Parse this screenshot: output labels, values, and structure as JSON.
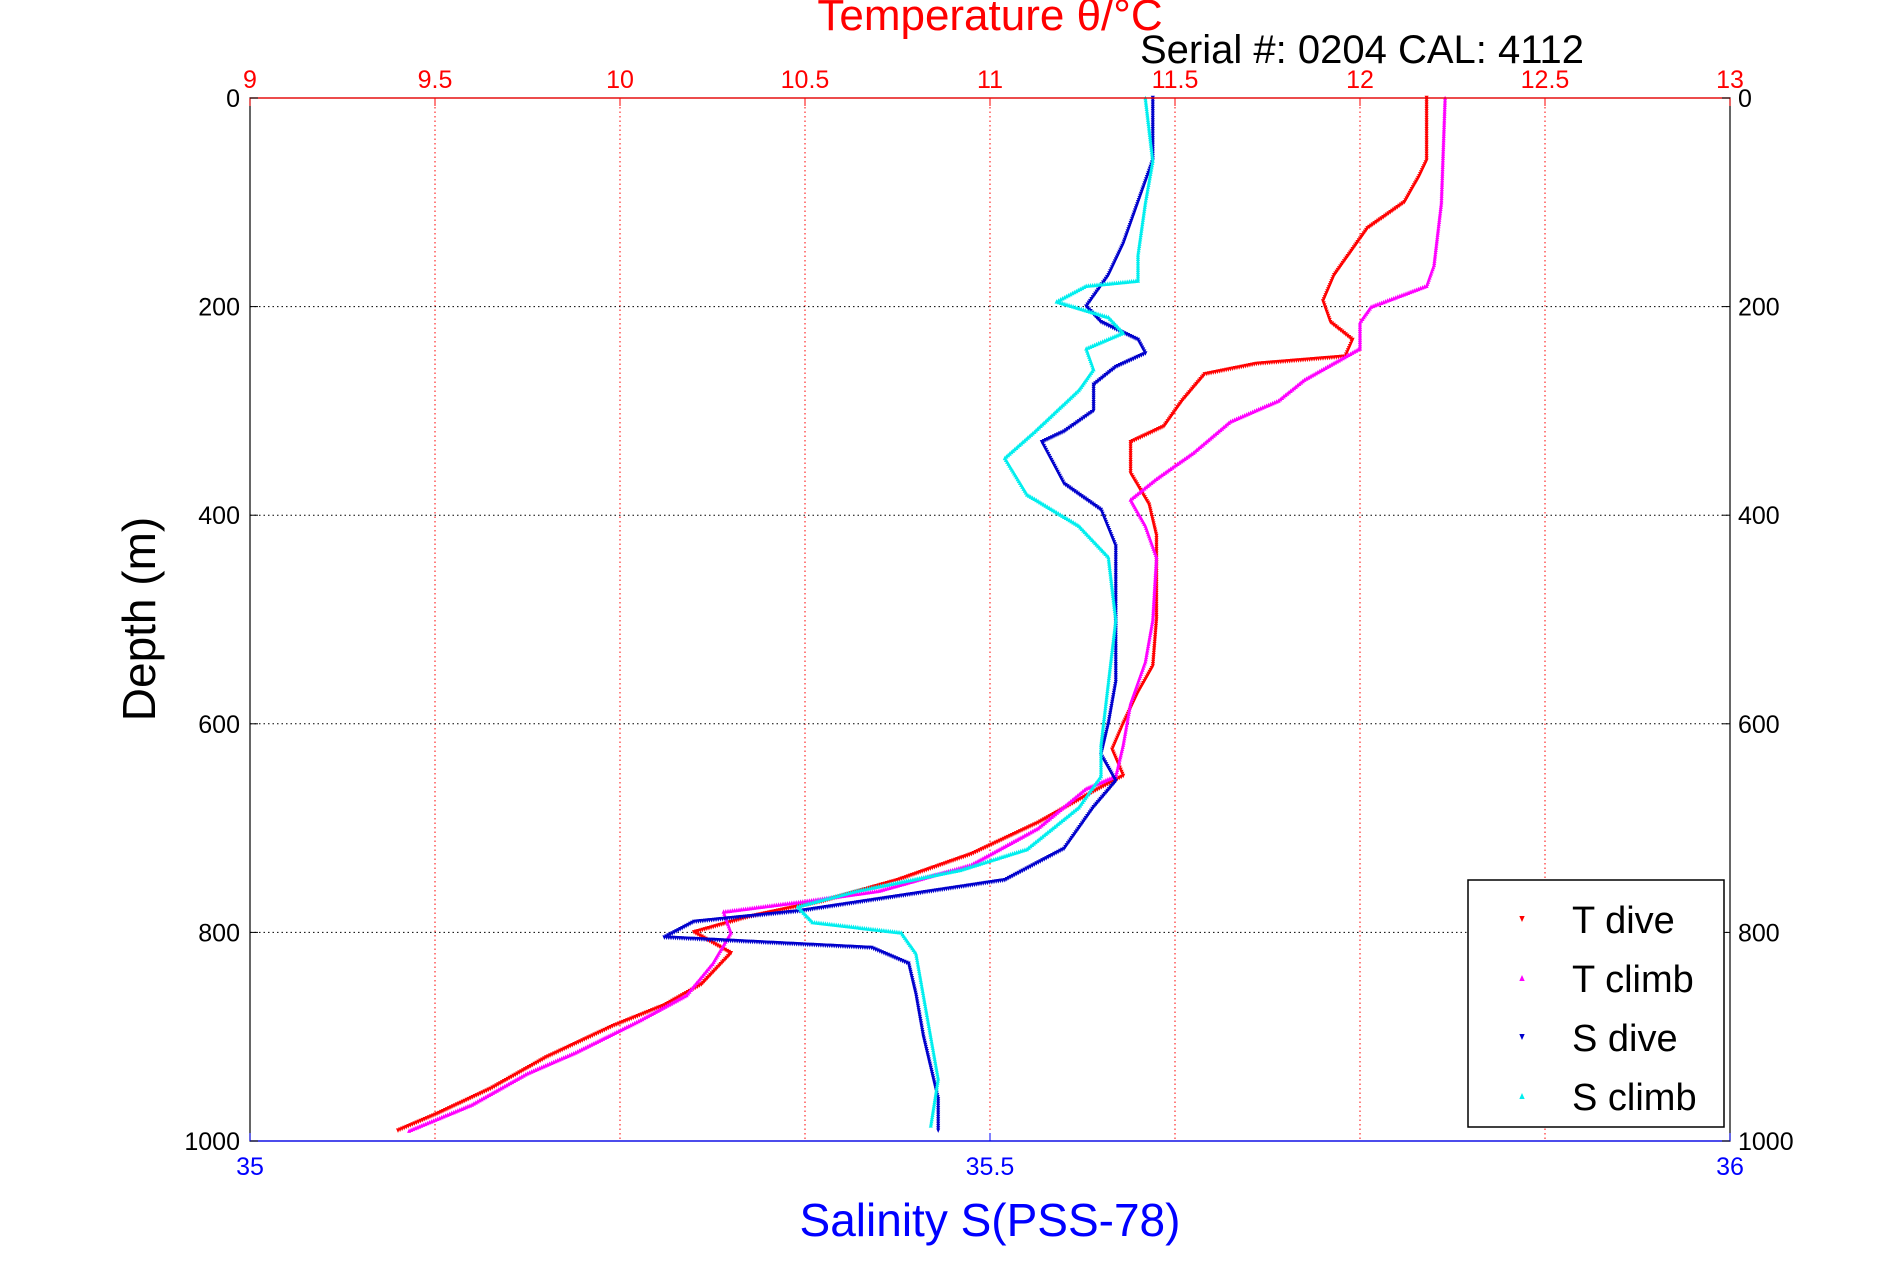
{
  "chart_data": {
    "type": "scatter",
    "title": "Temperature θ/°C",
    "subtitle": "Serial #: 0204  CAL: 4112",
    "ylabel": "Depth (m)",
    "xlabel_bottom": "Salinity S(PSS-78)",
    "y_reversed": true,
    "ylim": [
      0,
      1000
    ],
    "xlim_top": [
      9,
      13
    ],
    "xlim_bottom": [
      35,
      36
    ],
    "top_ticks": [
      "9",
      "9.5",
      "10",
      "10.5",
      "11",
      "11.5",
      "12",
      "12.5",
      "13"
    ],
    "bottom_ticks": [
      "35",
      "35.5",
      "36"
    ],
    "left_ticks": [
      "0",
      "200",
      "400",
      "600",
      "800",
      "1000"
    ],
    "right_ticks": [
      "0",
      "200",
      "400",
      "600",
      "800",
      "1000"
    ],
    "grid": true,
    "legend_position": "bottom-right",
    "colors": {
      "top_axis": "#ff0000",
      "bottom_axis": "#0000ff",
      "T dive": "#ff0000",
      "T climb": "#ff00ff",
      "S dive": "#0000cc",
      "S climb": "#00eeee"
    },
    "series": [
      {
        "name": "T dive",
        "axis": "temperature",
        "marker": "triangle-down",
        "points": [
          [
            12.18,
            0
          ],
          [
            12.18,
            60
          ],
          [
            12.16,
            75
          ],
          [
            12.12,
            100
          ],
          [
            12.02,
            125
          ],
          [
            11.98,
            145
          ],
          [
            11.93,
            170
          ],
          [
            11.9,
            195
          ],
          [
            11.92,
            215
          ],
          [
            11.98,
            232
          ],
          [
            11.96,
            248
          ],
          [
            11.72,
            255
          ],
          [
            11.58,
            265
          ],
          [
            11.52,
            290
          ],
          [
            11.47,
            315
          ],
          [
            11.38,
            330
          ],
          [
            11.38,
            360
          ],
          [
            11.43,
            390
          ],
          [
            11.45,
            420
          ],
          [
            11.45,
            500
          ],
          [
            11.44,
            545
          ],
          [
            11.4,
            570
          ],
          [
            11.36,
            600
          ],
          [
            11.33,
            625
          ],
          [
            11.36,
            650
          ],
          [
            11.28,
            665
          ],
          [
            11.13,
            695
          ],
          [
            10.95,
            725
          ],
          [
            10.75,
            750
          ],
          [
            10.55,
            770
          ],
          [
            10.35,
            785
          ],
          [
            10.2,
            800
          ],
          [
            10.3,
            820
          ],
          [
            10.22,
            850
          ],
          [
            10.12,
            870
          ],
          [
            9.98,
            890
          ],
          [
            9.8,
            920
          ],
          [
            9.65,
            950
          ],
          [
            9.5,
            975
          ],
          [
            9.4,
            990
          ]
        ]
      },
      {
        "name": "T climb",
        "axis": "temperature",
        "marker": "triangle-up",
        "points": [
          [
            12.23,
            0
          ],
          [
            12.22,
            100
          ],
          [
            12.2,
            160
          ],
          [
            12.18,
            180
          ],
          [
            12.03,
            200
          ],
          [
            12.0,
            215
          ],
          [
            12.0,
            240
          ],
          [
            11.85,
            270
          ],
          [
            11.78,
            290
          ],
          [
            11.65,
            310
          ],
          [
            11.55,
            340
          ],
          [
            11.45,
            365
          ],
          [
            11.38,
            385
          ],
          [
            11.42,
            410
          ],
          [
            11.45,
            440
          ],
          [
            11.44,
            500
          ],
          [
            11.42,
            540
          ],
          [
            11.38,
            580
          ],
          [
            11.36,
            620
          ],
          [
            11.34,
            650
          ],
          [
            11.26,
            662
          ],
          [
            11.13,
            700
          ],
          [
            10.95,
            735
          ],
          [
            10.7,
            760
          ],
          [
            10.5,
            770
          ],
          [
            10.28,
            780
          ],
          [
            10.3,
            800
          ],
          [
            10.25,
            830
          ],
          [
            10.18,
            860
          ],
          [
            10.05,
            885
          ],
          [
            9.88,
            915
          ],
          [
            9.75,
            935
          ],
          [
            9.6,
            965
          ],
          [
            9.43,
            990
          ]
        ]
      },
      {
        "name": "S dive",
        "axis": "salinity",
        "marker": "triangle-down",
        "points": [
          [
            35.61,
            0
          ],
          [
            35.61,
            60
          ],
          [
            35.6,
            100
          ],
          [
            35.59,
            140
          ],
          [
            35.58,
            170
          ],
          [
            35.565,
            200
          ],
          [
            35.575,
            215
          ],
          [
            35.6,
            232
          ],
          [
            35.605,
            245
          ],
          [
            35.585,
            258
          ],
          [
            35.57,
            275
          ],
          [
            35.57,
            300
          ],
          [
            35.55,
            320
          ],
          [
            35.535,
            330
          ],
          [
            35.55,
            370
          ],
          [
            35.575,
            395
          ],
          [
            35.585,
            430
          ],
          [
            35.585,
            500
          ],
          [
            35.585,
            560
          ],
          [
            35.58,
            600
          ],
          [
            35.575,
            630
          ],
          [
            35.585,
            655
          ],
          [
            35.57,
            680
          ],
          [
            35.55,
            720
          ],
          [
            35.51,
            750
          ],
          [
            35.44,
            765
          ],
          [
            35.37,
            780
          ],
          [
            35.3,
            790
          ],
          [
            35.28,
            805
          ],
          [
            35.35,
            810
          ],
          [
            35.42,
            815
          ],
          [
            35.445,
            830
          ],
          [
            35.45,
            860
          ],
          [
            35.455,
            900
          ],
          [
            35.46,
            930
          ],
          [
            35.465,
            960
          ],
          [
            35.465,
            990
          ]
        ]
      },
      {
        "name": "S climb",
        "axis": "salinity",
        "marker": "triangle-up",
        "points": [
          [
            35.605,
            0
          ],
          [
            35.61,
            60
          ],
          [
            35.605,
            100
          ],
          [
            35.6,
            150
          ],
          [
            35.6,
            175
          ],
          [
            35.565,
            180
          ],
          [
            35.545,
            195
          ],
          [
            35.58,
            210
          ],
          [
            35.59,
            225
          ],
          [
            35.565,
            240
          ],
          [
            35.57,
            260
          ],
          [
            35.56,
            280
          ],
          [
            35.545,
            300
          ],
          [
            35.53,
            320
          ],
          [
            35.51,
            345
          ],
          [
            35.525,
            380
          ],
          [
            35.56,
            410
          ],
          [
            35.58,
            440
          ],
          [
            35.585,
            500
          ],
          [
            35.58,
            560
          ],
          [
            35.575,
            620
          ],
          [
            35.575,
            650
          ],
          [
            35.56,
            680
          ],
          [
            35.525,
            720
          ],
          [
            35.48,
            740
          ],
          [
            35.41,
            760
          ],
          [
            35.37,
            775
          ],
          [
            35.38,
            790
          ],
          [
            35.44,
            800
          ],
          [
            35.45,
            820
          ],
          [
            35.455,
            860
          ],
          [
            35.46,
            900
          ],
          [
            35.465,
            940
          ],
          [
            35.46,
            985
          ]
        ]
      }
    ]
  }
}
